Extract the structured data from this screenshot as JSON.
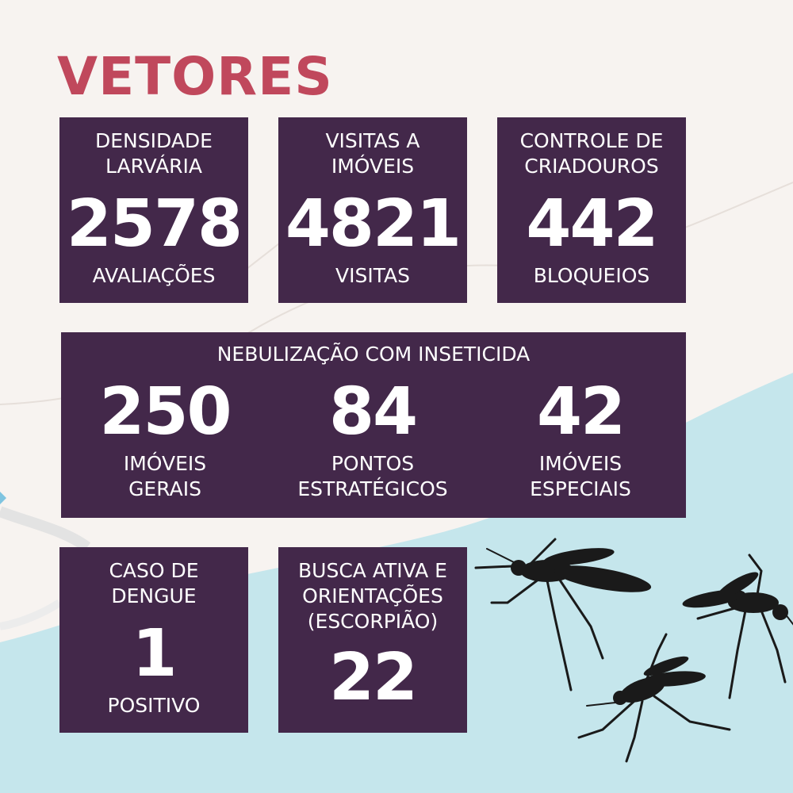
{
  "title": "VETORES",
  "colors": {
    "background": "#f7f3f0",
    "accent": "#c0485c",
    "card": "#43284a",
    "water": "#c5e6ec",
    "mosquito": "#1a1a1a"
  },
  "cards": {
    "densidade": {
      "label": "DENSIDADE\nLARVÁRIA",
      "value": "2578",
      "unit": "AVALIAÇÕES"
    },
    "visitas": {
      "label": "VISITAS A\nIMÓVEIS",
      "value": "4821",
      "unit": "VISITAS"
    },
    "controle": {
      "label": "CONTROLE DE\nCRIADOUROS",
      "value": "442",
      "unit": "BLOQUEIOS"
    },
    "nebulizacao": {
      "label": "NEBULIZAÇÃO COM INSETICIDA",
      "items": [
        {
          "value": "250",
          "unit": "IMÓVEIS\nGERAIS"
        },
        {
          "value": "84",
          "unit": "PONTOS\nESTRATÉGICOS"
        },
        {
          "value": "42",
          "unit": "IMÓVEIS\nESPECIAIS"
        }
      ]
    },
    "dengue": {
      "label": "CASO DE\nDENGUE",
      "value": "1",
      "unit": "POSITIVO"
    },
    "busca": {
      "label": "BUSCA ATIVA E\nORIENTAÇÕES\n(ESCORPIÃO)",
      "value": "22"
    }
  },
  "icons": [
    "map-background",
    "mosquito-icon"
  ]
}
